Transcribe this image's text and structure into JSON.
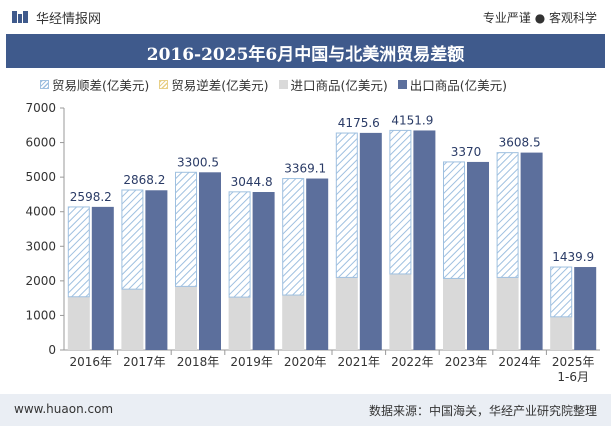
{
  "header": {
    "brand": "华经情报网",
    "tagline": "专业严谨 ● 客观科学"
  },
  "footer": {
    "site": "www.huaon.com",
    "source": "数据来源：中国海关，华经产业研究院整理"
  },
  "colors": {
    "title_bg": "#3f5a8c",
    "export": "#5c6f9c",
    "import": "#d9d9d9",
    "surplus_hatch": "#9fc0e0",
    "deficit_hatch": "#e8d088",
    "label": "#2a3b66"
  },
  "chart_data": {
    "type": "bar",
    "title": "2016-2025年6月中国与北美洲贸易差额",
    "categories": [
      "2016年",
      "2017年",
      "2018年",
      "2019年",
      "2020年",
      "2021年",
      "2022年",
      "2023年",
      "2024年",
      "2025年\n1-6月"
    ],
    "series": [
      {
        "name": "贸易顺差(亿美元)",
        "values": [
          2598.2,
          2868.2,
          3300.5,
          3044.8,
          3369.1,
          4175.6,
          4151.9,
          3370,
          3608.5,
          1439.9
        ]
      },
      {
        "name": "贸易逆差(亿美元)",
        "values": [
          0,
          0,
          0,
          0,
          0,
          0,
          0,
          0,
          0,
          0
        ]
      },
      {
        "name": "进口商品(亿美元)",
        "values": [
          1540,
          1760,
          1840,
          1530,
          1590,
          2100,
          2200,
          2070,
          2100,
          960
        ]
      },
      {
        "name": "出口商品(亿美元)",
        "values": [
          4140,
          4620,
          5140,
          4570,
          4960,
          6280,
          6350,
          5440,
          5710,
          2400
        ]
      }
    ],
    "labels": [
      "2598.2",
      "2868.2",
      "3300.5",
      "3044.8",
      "3369.1",
      "4175.6",
      "4151.9",
      "3370",
      "3608.5",
      "1439.9"
    ],
    "ylim": [
      0,
      7000
    ],
    "yticks": [
      0,
      1000,
      2000,
      3000,
      4000,
      5000,
      6000,
      7000
    ],
    "legend_position": "top",
    "grid": false
  }
}
